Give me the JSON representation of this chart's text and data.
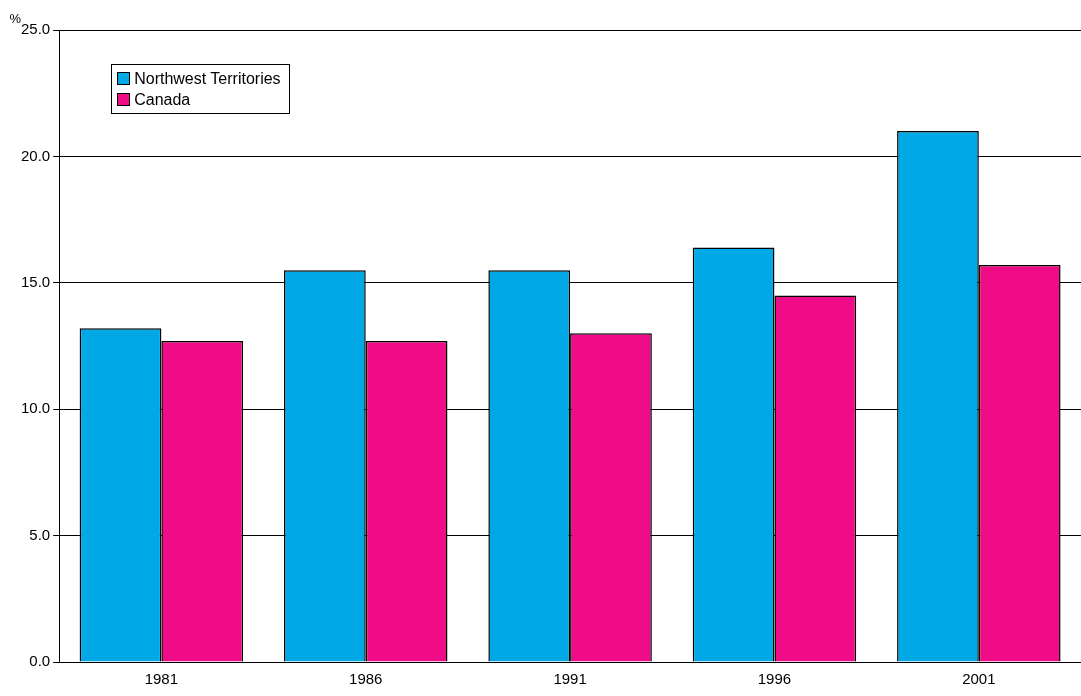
{
  "chart_data": {
    "type": "bar",
    "ylabel": "%",
    "categories": [
      "1981",
      "1986",
      "1991",
      "1996",
      "2001"
    ],
    "series": [
      {
        "name": "Northwest Territories",
        "color": "#00a8e6",
        "values": [
          13.2,
          15.5,
          15.5,
          16.4,
          21.0
        ]
      },
      {
        "name": "Canada",
        "color": "#f00c86",
        "values": [
          12.7,
          12.7,
          13.0,
          14.5,
          15.7
        ]
      }
    ],
    "ylim": [
      0,
      25
    ],
    "yticks": [
      {
        "value": 0,
        "label": "0.0"
      },
      {
        "value": 5,
        "label": "5.0"
      },
      {
        "value": 10,
        "label": "10.0"
      },
      {
        "value": 15,
        "label": "15.0"
      },
      {
        "value": 20,
        "label": "20.0"
      },
      {
        "value": 25,
        "label": "25.0"
      }
    ],
    "grid": "y",
    "legend": "top left"
  }
}
